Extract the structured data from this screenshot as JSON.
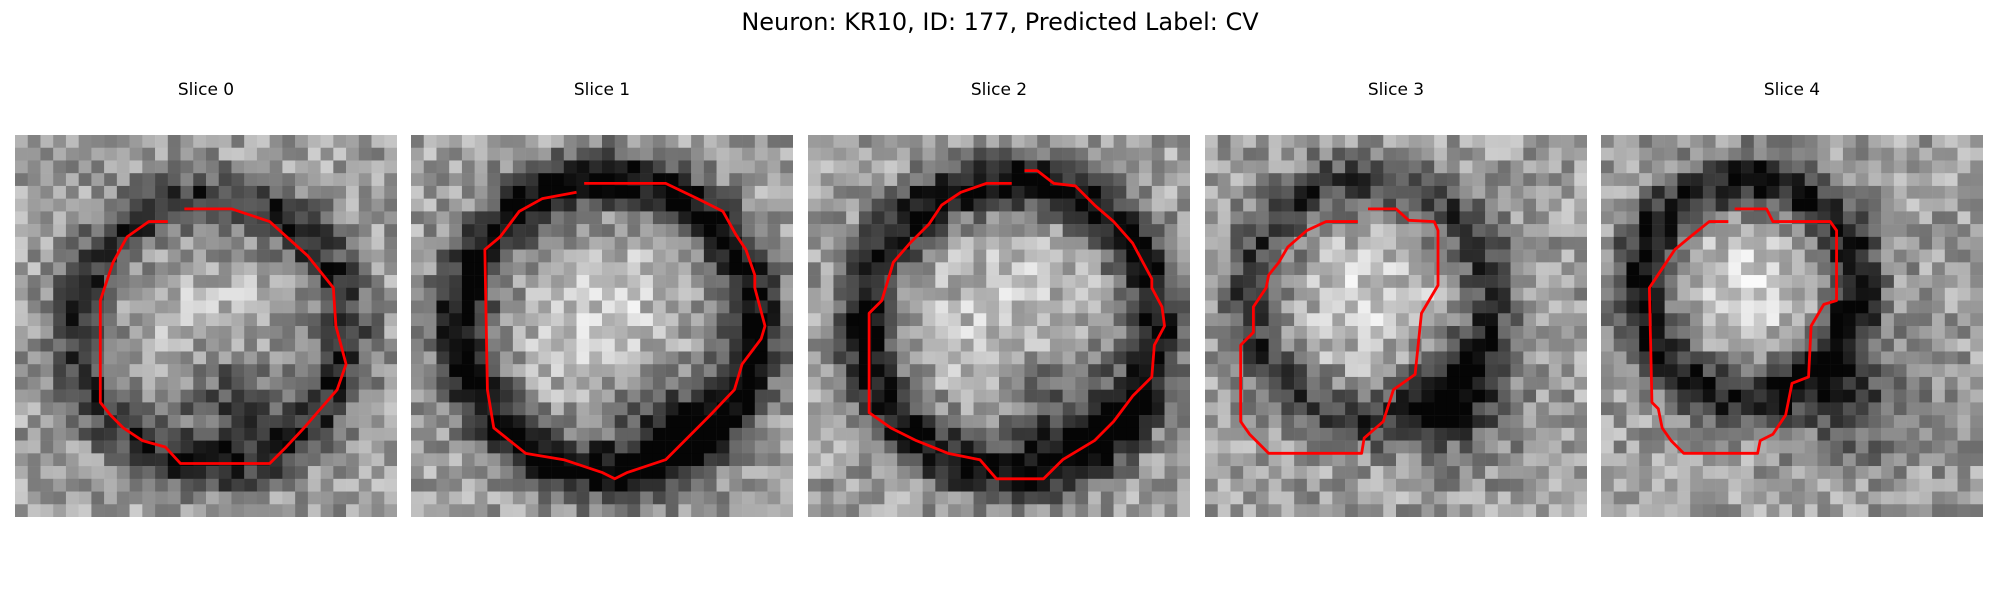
{
  "figure": {
    "title": "Neuron: KR10, ID: 177, Predicted Label: CV"
  },
  "slices": [
    {
      "title": "Slice 0"
    },
    {
      "title": "Slice 1"
    },
    {
      "title": "Slice 2"
    },
    {
      "title": "Slice 3"
    },
    {
      "title": "Slice 4"
    }
  ],
  "colors": {
    "contour": "#ff0000",
    "background": "#ffffff"
  }
}
